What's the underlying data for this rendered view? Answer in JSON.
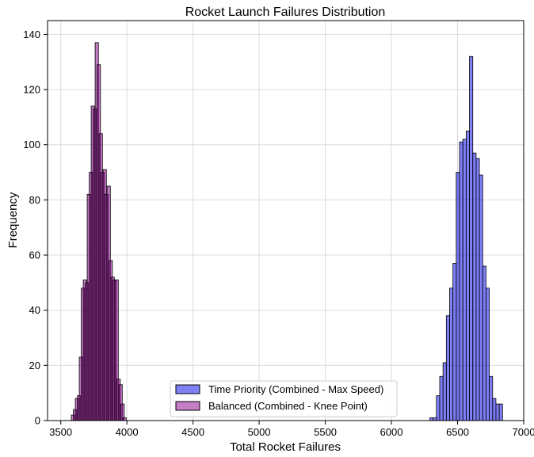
{
  "chart_data": {
    "type": "bar",
    "title": "Rocket Launch Failures Distribution",
    "xlabel": "Total Rocket Failures",
    "ylabel": "Frequency",
    "xlim": [
      3400,
      7000
    ],
    "ylim": [
      0,
      145
    ],
    "x_ticks": [
      3500,
      4000,
      4500,
      5000,
      5500,
      6000,
      6500,
      7000
    ],
    "y_ticks": [
      0,
      20,
      40,
      60,
      80,
      100,
      120,
      140
    ],
    "x_tick_labels": [
      "3500",
      "4000",
      "4500",
      "5000",
      "5500",
      "6000",
      "6500",
      "7000"
    ],
    "y_tick_labels": [
      "0",
      "20",
      "40",
      "60",
      "80",
      "100",
      "120",
      "140"
    ],
    "grid": true,
    "legend_position": "bottom-center",
    "bin_width": 25,
    "series": [
      {
        "name": "Time Priority (Combined - Max Speed)",
        "color": "#0000ee",
        "bin_starts": [
          6290,
          6315,
          6340,
          6365,
          6390,
          6415,
          6440,
          6465,
          6490,
          6515,
          6540,
          6565,
          6590,
          6615,
          6640,
          6665,
          6690,
          6715,
          6740,
          6765,
          6790,
          6815
        ],
        "values": [
          1,
          1,
          9,
          16,
          21,
          38,
          48,
          57,
          90,
          101,
          102,
          105,
          132,
          97,
          95,
          89,
          56,
          48,
          16,
          8,
          6,
          6
        ]
      },
      {
        "name": "Balanced (Combined - Knee Point)",
        "color": "#8e008e",
        "bin_starts": [
          3580,
          3595,
          3610,
          3625,
          3640,
          3655,
          3670,
          3685,
          3700,
          3715,
          3730,
          3745,
          3760,
          3775,
          3790,
          3805,
          3820,
          3835,
          3850,
          3865,
          3880,
          3895,
          3910,
          3925,
          3940,
          3955,
          3970
        ],
        "values": [
          2,
          4,
          8,
          9,
          23,
          48,
          51,
          50,
          82,
          90,
          114,
          113,
          137,
          129,
          104,
          90,
          91,
          82,
          85,
          58,
          52,
          51,
          51,
          15,
          13,
          6,
          1
        ]
      }
    ]
  }
}
